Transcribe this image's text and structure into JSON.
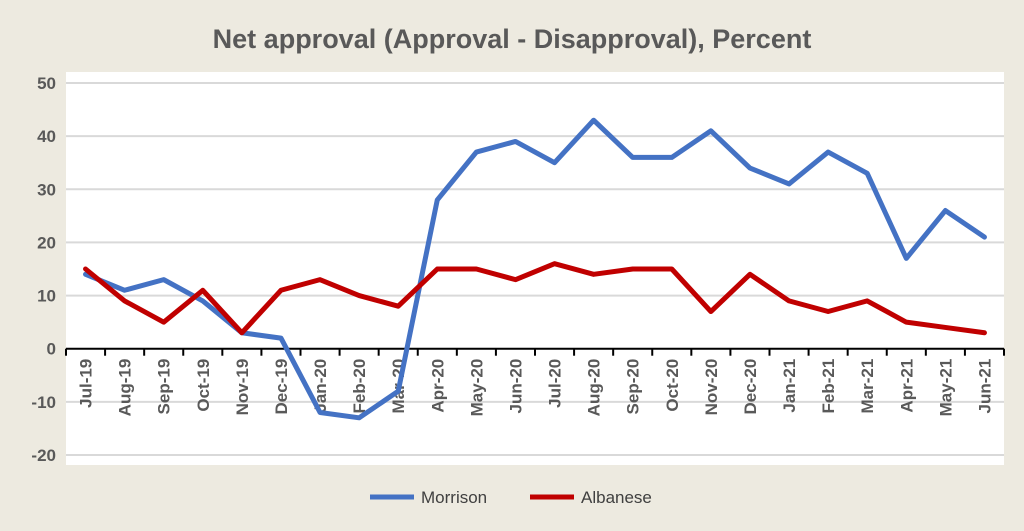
{
  "chart_data": {
    "type": "line",
    "title": "Net approval (Approval - Disapproval), Percent",
    "xlabel": "",
    "ylabel": "",
    "ylim": [
      -20,
      50
    ],
    "yticks": [
      -20,
      -10,
      0,
      10,
      20,
      30,
      40,
      50
    ],
    "grid": true,
    "legend_position": "bottom",
    "categories": [
      "Jul-19",
      "Aug-19",
      "Sep-19",
      "Oct-19",
      "Nov-19",
      "Dec-19",
      "Jan-20",
      "Feb-20",
      "Mar-20",
      "Apr-20",
      "May-20",
      "Jun-20",
      "Jul-20",
      "Aug-20",
      "Sep-20",
      "Oct-20",
      "Nov-20",
      "Dec-20",
      "Jan-21",
      "Feb-21",
      "Mar-21",
      "Apr-21",
      "May-21",
      "Jun-21"
    ],
    "series": [
      {
        "name": "Morrison",
        "color": "#4472C4",
        "values": [
          14,
          11,
          13,
          9,
          3,
          2,
          -12,
          -13,
          -8,
          28,
          37,
          39,
          35,
          43,
          36,
          36,
          41,
          34,
          31,
          37,
          33,
          17,
          26,
          21
        ]
      },
      {
        "name": "Albanese",
        "color": "#C00000",
        "values": [
          15,
          9,
          5,
          11,
          3,
          11,
          13,
          10,
          8,
          15,
          15,
          13,
          16,
          14,
          15,
          15,
          7,
          14,
          9,
          7,
          9,
          5,
          4,
          3
        ]
      }
    ]
  }
}
